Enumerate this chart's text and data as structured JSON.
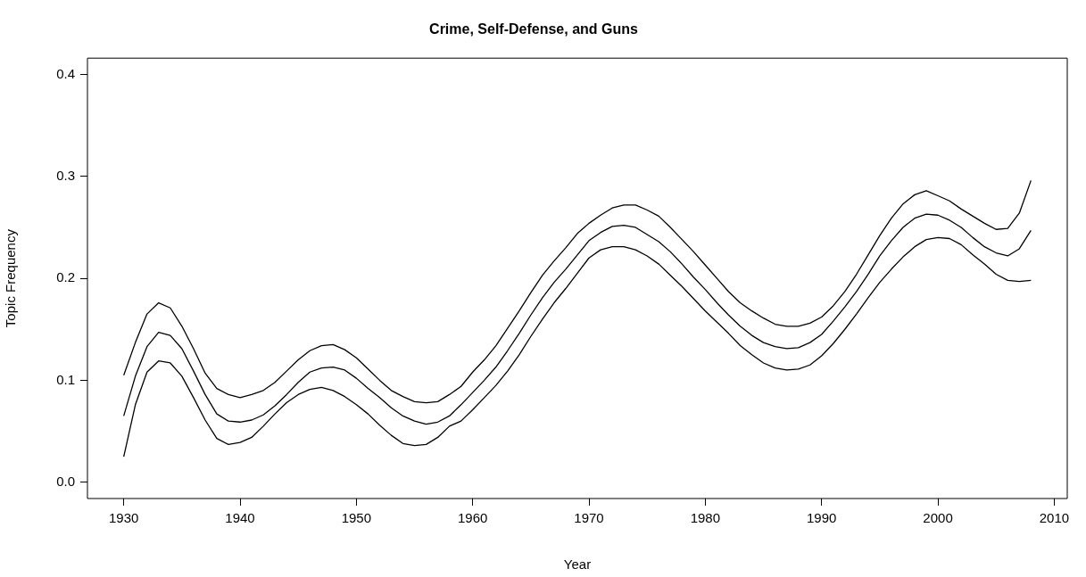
{
  "chart_data": {
    "type": "line",
    "title": "Crime, Self-Defense, and Guns",
    "xlabel": "Year",
    "ylabel": "Topic Frequency",
    "x": [
      1930,
      1931,
      1932,
      1933,
      1934,
      1935,
      1936,
      1937,
      1938,
      1939,
      1940,
      1941,
      1942,
      1943,
      1944,
      1945,
      1946,
      1947,
      1948,
      1949,
      1950,
      1951,
      1952,
      1953,
      1954,
      1955,
      1956,
      1957,
      1958,
      1959,
      1960,
      1961,
      1962,
      1963,
      1964,
      1965,
      1966,
      1967,
      1968,
      1969,
      1970,
      1971,
      1972,
      1973,
      1974,
      1975,
      1976,
      1977,
      1978,
      1979,
      1980,
      1981,
      1982,
      1983,
      1984,
      1985,
      1986,
      1987,
      1988,
      1989,
      1990,
      1991,
      1992,
      1993,
      1994,
      1995,
      1996,
      1997,
      1998,
      1999,
      2000,
      2001,
      2002,
      2003,
      2004,
      2005,
      2006,
      2007,
      2008
    ],
    "series": [
      {
        "color": "#000000",
        "values": [
          0.105,
          0.137,
          0.165,
          0.176,
          0.171,
          0.153,
          0.131,
          0.107,
          0.092,
          0.086,
          0.083,
          0.086,
          0.09,
          0.098,
          0.109,
          0.12,
          0.129,
          0.134,
          0.135,
          0.13,
          0.122,
          0.111,
          0.1,
          0.09,
          0.084,
          0.079,
          0.078,
          0.079,
          0.086,
          0.094,
          0.108,
          0.12,
          0.134,
          0.151,
          0.168,
          0.186,
          0.203,
          0.217,
          0.23,
          0.244,
          0.254,
          0.262,
          0.269,
          0.272,
          0.272,
          0.267,
          0.261,
          0.25,
          0.238,
          0.226,
          0.213,
          0.2,
          0.187,
          0.176,
          0.168,
          0.161,
          0.155,
          0.153,
          0.153,
          0.156,
          0.162,
          0.173,
          0.187,
          0.204,
          0.223,
          0.242,
          0.259,
          0.273,
          0.282,
          0.286,
          0.281,
          0.276,
          0.268,
          0.261,
          0.254,
          0.248,
          0.249,
          0.264,
          0.296
        ]
      },
      {
        "color": "#000000",
        "values": [
          0.065,
          0.104,
          0.133,
          0.147,
          0.144,
          0.131,
          0.109,
          0.086,
          0.067,
          0.06,
          0.059,
          0.061,
          0.066,
          0.075,
          0.086,
          0.098,
          0.108,
          0.112,
          0.113,
          0.11,
          0.102,
          0.092,
          0.083,
          0.073,
          0.065,
          0.06,
          0.057,
          0.059,
          0.065,
          0.076,
          0.088,
          0.1,
          0.113,
          0.129,
          0.146,
          0.164,
          0.181,
          0.196,
          0.209,
          0.223,
          0.237,
          0.245,
          0.251,
          0.252,
          0.25,
          0.243,
          0.236,
          0.226,
          0.214,
          0.201,
          0.189,
          0.176,
          0.164,
          0.153,
          0.144,
          0.137,
          0.133,
          0.131,
          0.132,
          0.137,
          0.145,
          0.158,
          0.172,
          0.187,
          0.204,
          0.222,
          0.237,
          0.25,
          0.259,
          0.263,
          0.262,
          0.257,
          0.25,
          0.24,
          0.231,
          0.225,
          0.222,
          0.229,
          0.247
        ]
      },
      {
        "color": "#000000",
        "values": [
          0.025,
          0.076,
          0.108,
          0.119,
          0.117,
          0.104,
          0.083,
          0.061,
          0.043,
          0.037,
          0.039,
          0.044,
          0.055,
          0.067,
          0.078,
          0.086,
          0.091,
          0.093,
          0.09,
          0.084,
          0.076,
          0.067,
          0.056,
          0.046,
          0.038,
          0.036,
          0.037,
          0.044,
          0.055,
          0.06,
          0.071,
          0.083,
          0.095,
          0.109,
          0.125,
          0.143,
          0.16,
          0.176,
          0.19,
          0.205,
          0.22,
          0.228,
          0.231,
          0.231,
          0.228,
          0.222,
          0.214,
          0.203,
          0.192,
          0.18,
          0.168,
          0.157,
          0.146,
          0.134,
          0.125,
          0.117,
          0.112,
          0.11,
          0.111,
          0.115,
          0.124,
          0.136,
          0.15,
          0.165,
          0.181,
          0.196,
          0.209,
          0.221,
          0.231,
          0.238,
          0.24,
          0.239,
          0.233,
          0.223,
          0.214,
          0.204,
          0.198,
          0.197,
          0.198
        ]
      }
    ],
    "xlim": [
      1926.88,
      2011.12
    ],
    "ylim": [
      -0.016,
      0.416
    ],
    "xticks": [
      1930,
      1940,
      1950,
      1960,
      1970,
      1980,
      1990,
      2000,
      2010
    ],
    "yticks": [
      {
        "value": 0,
        "label": "0.0"
      },
      {
        "value": 0.1,
        "label": "0.1"
      },
      {
        "value": 0.2,
        "label": "0.2"
      },
      {
        "value": 0.3,
        "label": "0.3"
      },
      {
        "value": 0.4,
        "label": "0.4"
      }
    ],
    "grid": false,
    "legend": false,
    "marker": "none",
    "line_style": "solid"
  }
}
